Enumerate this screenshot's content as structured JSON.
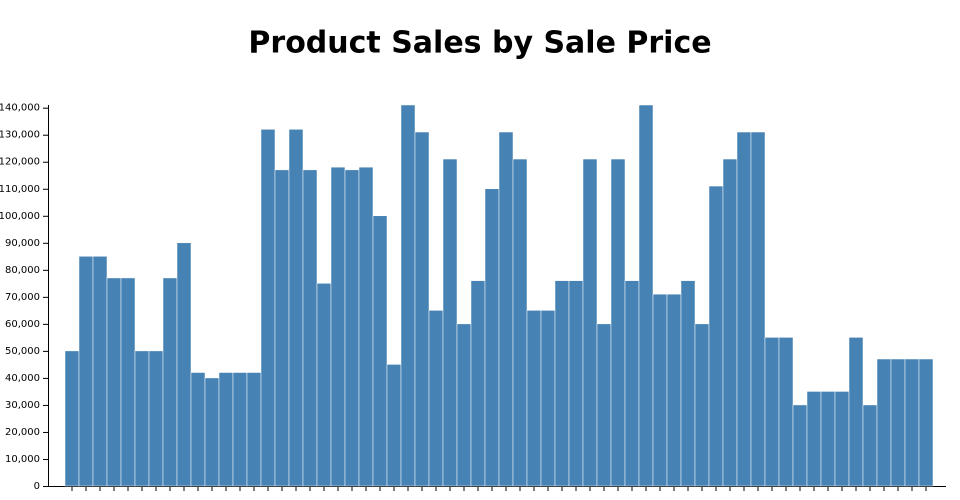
{
  "chart_data": {
    "type": "bar",
    "title": "Product Sales by Sale Price",
    "categories": [
      null,
      null,
      null,
      null,
      null,
      null,
      null,
      null,
      null,
      null,
      null,
      null,
      null,
      null,
      null,
      null,
      null,
      null,
      null,
      null,
      null,
      null,
      null,
      null,
      null,
      null,
      null,
      null,
      null,
      null,
      null,
      null,
      null,
      null,
      null,
      null,
      null,
      null,
      null,
      null,
      null,
      null,
      null,
      null,
      null,
      null,
      null,
      null,
      null,
      null,
      null,
      null,
      null,
      null,
      null,
      null,
      null,
      null,
      null,
      null,
      null,
      null
    ],
    "values": [
      50000,
      85000,
      85000,
      77000,
      77000,
      50000,
      50000,
      77000,
      90000,
      42000,
      40000,
      42000,
      42000,
      42000,
      132000,
      117000,
      132000,
      117000,
      75000,
      118000,
      117000,
      118000,
      100000,
      45000,
      141000,
      131000,
      65000,
      121000,
      60000,
      76000,
      110000,
      131000,
      121000,
      65000,
      65000,
      76000,
      76000,
      121000,
      60000,
      121000,
      76000,
      141000,
      71000,
      71000,
      76000,
      60000,
      111000,
      121000,
      131000,
      131000,
      55000,
      55000,
      30000,
      35000,
      35000,
      35000,
      55000,
      30000,
      47000,
      47000,
      47000,
      47000
    ],
    "color": "#4682b4",
    "ylim": [
      0,
      141000
    ],
    "yticks": [
      0,
      {
        "value": 10000,
        "label": "10,000"
      },
      {
        "value": 20000,
        "label": "20,000"
      },
      {
        "value": 30000,
        "label": "30,000"
      },
      {
        "value": 40000,
        "label": "40,000"
      },
      {
        "value": 50000,
        "label": "50,000"
      },
      {
        "value": 60000,
        "label": "60,000"
      },
      {
        "value": 70000,
        "label": "70,000"
      },
      {
        "value": 80000,
        "label": "80,000"
      },
      {
        "value": 90000,
        "label": "90,000"
      },
      {
        "value": 100000,
        "label": "100,000"
      },
      {
        "value": 110000,
        "label": "110,000"
      },
      {
        "value": 120000,
        "label": "120,000"
      },
      {
        "value": 130000,
        "label": "130,000"
      },
      {
        "value": 140000,
        "label": "140,000"
      }
    ],
    "grid": false
  }
}
